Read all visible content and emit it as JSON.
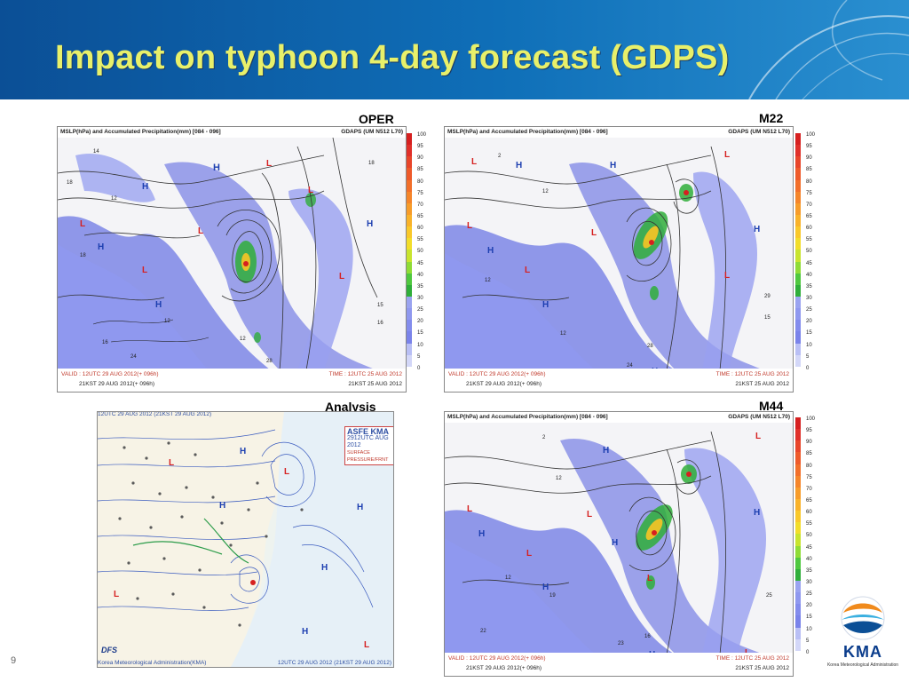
{
  "slide": {
    "title": "Impact on typhoon 4-day forecast (GDPS)",
    "slide_number": "9"
  },
  "colors": {
    "banner": "#0f6fb8",
    "title_text": "#e8f06a",
    "precip_fill": "#7d86e6",
    "high_marker": "#1d3fb0",
    "low_marker": "#d62020"
  },
  "panels": [
    {
      "label": "OPER",
      "header_left": "MSLP(hPa) and Accumulated Precipitation(mm) [084 - 096]",
      "header_right": "GDAPS (UM N512 L70)",
      "valid": "VALID : 12UTC 29 AUG 2012(+ 096h)",
      "valid_kst": "21KST 29 AUG 2012(+ 096h)",
      "time": "TIME : 12UTC 25 AUG 2012",
      "time_kst": "21KST 25 AUG 2012"
    },
    {
      "label": "M22",
      "header_left": "MSLP(hPa) and Accumulated Precipitation(mm) [084 - 096]",
      "header_right": "GDAPS (UM N512 L70)",
      "valid": "VALID : 12UTC 29 AUG 2012(+ 096h)",
      "valid_kst": "21KST 29 AUG 2012(+ 096h)",
      "time": "TIME : 12UTC 25 AUG 2012",
      "time_kst": "21KST 25 AUG 2012"
    },
    {
      "label": "M44",
      "header_left": "MSLP(hPa) and Accumulated Precipitation(mm) [084 - 096]",
      "header_right": "GDAPS (UM N512 L70)",
      "valid": "VALID : 12UTC 29 AUG 2012(+ 096h)",
      "valid_kst": "21KST 29 AUG 2012(+ 096h)",
      "time": "TIME : 12UTC 25 AUG 2012",
      "time_kst": "21KST 25 AUG 2012"
    }
  ],
  "analysis": {
    "label": "Analysis",
    "top_text": "12UTC 29 AUG 2012 (21KST 29 AUG 2012)",
    "asfe_title": "ASFE KMA",
    "asfe_date": "2912UTC AUG 2012",
    "asfe_note": "SURFACE PRESSURE/FRNT",
    "dfs": "DFS",
    "bottom_left": "Korea Meteorological Administration(KMA)",
    "bottom_right": "12UTC 29 AUG 2012 (21KST 29 AUG 2012)"
  },
  "precip_scale": [
    "100",
    "95",
    "90",
    "85",
    "80",
    "75",
    "70",
    "65",
    "60",
    "55",
    "50",
    "45",
    "40",
    "35",
    "30",
    "25",
    "20",
    "15",
    "10",
    "5",
    "0"
  ],
  "logo": {
    "name": "KMA",
    "subtitle": "Korea Meteorological Administration"
  }
}
